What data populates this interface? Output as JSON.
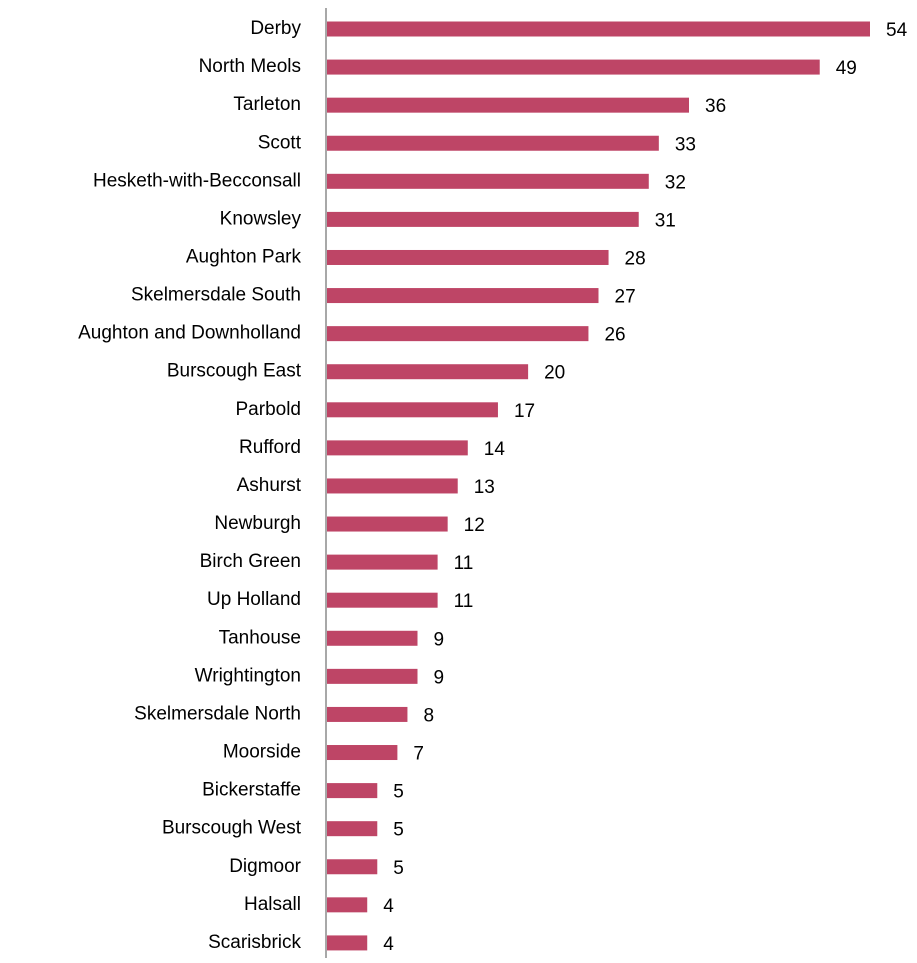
{
  "chart_data": {
    "type": "hbar",
    "color": "#be4566",
    "categories": [
      "Derby",
      "North Meols",
      "Tarleton",
      "Scott",
      "Hesketh-with-Becconsall",
      "Knowsley",
      "Aughton Park",
      "Skelmersdale South",
      "Aughton and Downholland",
      "Burscough East",
      "Parbold",
      "Rufford",
      "Ashurst",
      "Newburgh",
      "Birch Green",
      "Up Holland",
      "Tanhouse",
      "Wrightington",
      "Skelmersdale North",
      "Moorside",
      "Bickerstaffe",
      "Burscough West",
      "Digmoor",
      "Halsall",
      "Scarisbrick"
    ],
    "values": [
      54,
      49,
      36,
      33,
      32,
      31,
      28,
      27,
      26,
      20,
      17,
      14,
      13,
      12,
      11,
      11,
      9,
      9,
      8,
      7,
      5,
      5,
      5,
      4,
      4
    ]
  }
}
